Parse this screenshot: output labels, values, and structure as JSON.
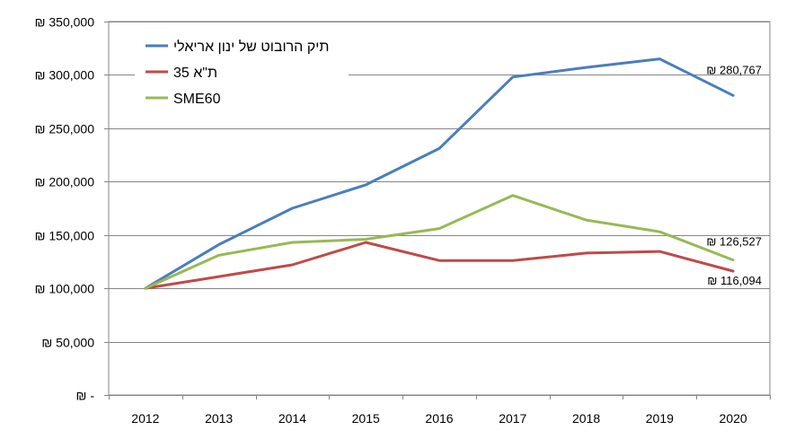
{
  "chart_data": {
    "type": "line",
    "categories": [
      "2012",
      "2013",
      "2014",
      "2015",
      "2016",
      "2017",
      "2018",
      "2019",
      "2020"
    ],
    "ylim": [
      0,
      350000
    ],
    "y_ticks": [
      {
        "value": 0,
        "label": "₪ -"
      },
      {
        "value": 50000,
        "label": "₪ 50,000"
      },
      {
        "value": 100000,
        "label": "₪ 100,000"
      },
      {
        "value": 150000,
        "label": "₪ 150,000"
      },
      {
        "value": 200000,
        "label": "₪ 200,000"
      },
      {
        "value": 250000,
        "label": "₪ 250,000"
      },
      {
        "value": 300000,
        "label": "₪ 300,000"
      },
      {
        "value": 350000,
        "label": "₪ 350,000"
      }
    ],
    "grid": true,
    "legend_position": "top-left",
    "series": [
      {
        "name": "תיק הרובוט של ינון אריאלי",
        "color": "#4a7ebb",
        "values": [
          100000,
          141000,
          175000,
          197000,
          231000,
          298000,
          307000,
          315000,
          280767
        ],
        "end_label": "₪ 280,767"
      },
      {
        "name": "ת\"א 35",
        "color": "#be4b48",
        "values": [
          100000,
          111000,
          122000,
          143000,
          126000,
          126000,
          133000,
          134500,
          116094
        ],
        "end_label": "₪ 116,094"
      },
      {
        "name": "SME60",
        "color": "#98b954",
        "values": [
          100000,
          131000,
          143000,
          146000,
          156000,
          187000,
          164000,
          153000,
          126527
        ],
        "end_label": "₪ 126,527"
      }
    ]
  }
}
